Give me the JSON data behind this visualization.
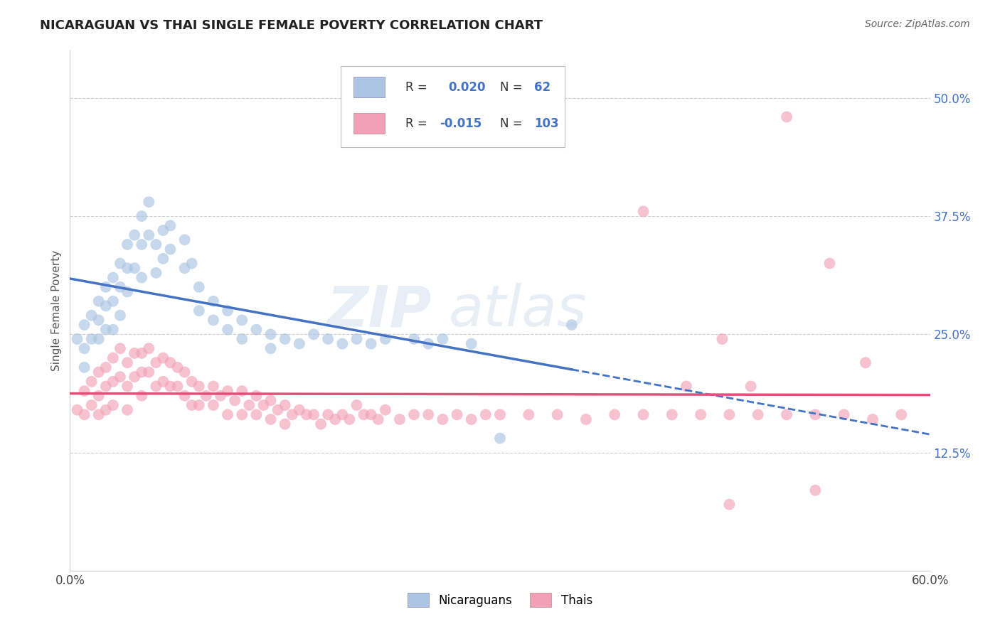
{
  "title": "NICARAGUAN VS THAI SINGLE FEMALE POVERTY CORRELATION CHART",
  "source_text": "Source: ZipAtlas.com",
  "ylabel": "Single Female Poverty",
  "xlim": [
    0.0,
    0.6
  ],
  "ylim": [
    0.0,
    0.55
  ],
  "xticks": [
    0.0,
    0.1,
    0.2,
    0.3,
    0.4,
    0.5,
    0.6
  ],
  "xticklabels": [
    "0.0%",
    "",
    "",
    "",
    "",
    "",
    "60.0%"
  ],
  "ytick_positions": [
    0.125,
    0.25,
    0.375,
    0.5
  ],
  "ytick_labels": [
    "12.5%",
    "25.0%",
    "37.5%",
    "50.0%"
  ],
  "nicaraguan_color": "#aac4e2",
  "thai_color": "#f2a0b8",
  "nicaraguan_line_color": "#4472c4",
  "thai_line_color": "#e0507a",
  "R_nicaraguan": 0.02,
  "N_nicaraguan": 62,
  "R_thai": -0.015,
  "N_thai": 103,
  "background_color": "#ffffff",
  "grid_color": "#cccccc",
  "scatter_alpha": 0.65,
  "scatter_size": 130,
  "nicaraguan_x": [
    0.005,
    0.01,
    0.01,
    0.01,
    0.015,
    0.015,
    0.02,
    0.02,
    0.02,
    0.025,
    0.025,
    0.025,
    0.03,
    0.03,
    0.03,
    0.035,
    0.035,
    0.035,
    0.04,
    0.04,
    0.04,
    0.045,
    0.045,
    0.05,
    0.05,
    0.05,
    0.055,
    0.055,
    0.06,
    0.06,
    0.065,
    0.065,
    0.07,
    0.07,
    0.08,
    0.08,
    0.085,
    0.09,
    0.09,
    0.1,
    0.1,
    0.11,
    0.11,
    0.12,
    0.12,
    0.13,
    0.14,
    0.14,
    0.15,
    0.16,
    0.17,
    0.18,
    0.19,
    0.2,
    0.21,
    0.22,
    0.24,
    0.25,
    0.26,
    0.28,
    0.3,
    0.35
  ],
  "nicaraguan_y": [
    0.245,
    0.26,
    0.235,
    0.215,
    0.27,
    0.245,
    0.285,
    0.265,
    0.245,
    0.3,
    0.28,
    0.255,
    0.31,
    0.285,
    0.255,
    0.325,
    0.3,
    0.27,
    0.345,
    0.32,
    0.295,
    0.355,
    0.32,
    0.375,
    0.345,
    0.31,
    0.39,
    0.355,
    0.345,
    0.315,
    0.36,
    0.33,
    0.365,
    0.34,
    0.35,
    0.32,
    0.325,
    0.3,
    0.275,
    0.285,
    0.265,
    0.275,
    0.255,
    0.265,
    0.245,
    0.255,
    0.25,
    0.235,
    0.245,
    0.24,
    0.25,
    0.245,
    0.24,
    0.245,
    0.24,
    0.245,
    0.245,
    0.24,
    0.245,
    0.24,
    0.14,
    0.26
  ],
  "thai_x": [
    0.005,
    0.01,
    0.01,
    0.015,
    0.015,
    0.02,
    0.02,
    0.02,
    0.025,
    0.025,
    0.025,
    0.03,
    0.03,
    0.03,
    0.035,
    0.035,
    0.04,
    0.04,
    0.04,
    0.045,
    0.045,
    0.05,
    0.05,
    0.05,
    0.055,
    0.055,
    0.06,
    0.06,
    0.065,
    0.065,
    0.07,
    0.07,
    0.075,
    0.075,
    0.08,
    0.08,
    0.085,
    0.085,
    0.09,
    0.09,
    0.095,
    0.1,
    0.1,
    0.105,
    0.11,
    0.11,
    0.115,
    0.12,
    0.12,
    0.125,
    0.13,
    0.13,
    0.135,
    0.14,
    0.14,
    0.145,
    0.15,
    0.15,
    0.155,
    0.16,
    0.165,
    0.17,
    0.175,
    0.18,
    0.185,
    0.19,
    0.195,
    0.2,
    0.205,
    0.21,
    0.215,
    0.22,
    0.23,
    0.24,
    0.25,
    0.26,
    0.27,
    0.28,
    0.29,
    0.3,
    0.32,
    0.34,
    0.36,
    0.38,
    0.4,
    0.42,
    0.44,
    0.46,
    0.48,
    0.5,
    0.52,
    0.54,
    0.56,
    0.58,
    0.455,
    0.475,
    0.5,
    0.53,
    0.555,
    0.4,
    0.43,
    0.46,
    0.52
  ],
  "thai_y": [
    0.17,
    0.19,
    0.165,
    0.2,
    0.175,
    0.21,
    0.185,
    0.165,
    0.215,
    0.195,
    0.17,
    0.225,
    0.2,
    0.175,
    0.235,
    0.205,
    0.22,
    0.195,
    0.17,
    0.23,
    0.205,
    0.23,
    0.21,
    0.185,
    0.235,
    0.21,
    0.22,
    0.195,
    0.225,
    0.2,
    0.22,
    0.195,
    0.215,
    0.195,
    0.21,
    0.185,
    0.2,
    0.175,
    0.195,
    0.175,
    0.185,
    0.195,
    0.175,
    0.185,
    0.19,
    0.165,
    0.18,
    0.19,
    0.165,
    0.175,
    0.185,
    0.165,
    0.175,
    0.18,
    0.16,
    0.17,
    0.175,
    0.155,
    0.165,
    0.17,
    0.165,
    0.165,
    0.155,
    0.165,
    0.16,
    0.165,
    0.16,
    0.175,
    0.165,
    0.165,
    0.16,
    0.17,
    0.16,
    0.165,
    0.165,
    0.16,
    0.165,
    0.16,
    0.165,
    0.165,
    0.165,
    0.165,
    0.16,
    0.165,
    0.165,
    0.165,
    0.165,
    0.165,
    0.165,
    0.165,
    0.165,
    0.165,
    0.16,
    0.165,
    0.245,
    0.195,
    0.48,
    0.325,
    0.22,
    0.38,
    0.195,
    0.07,
    0.085
  ]
}
